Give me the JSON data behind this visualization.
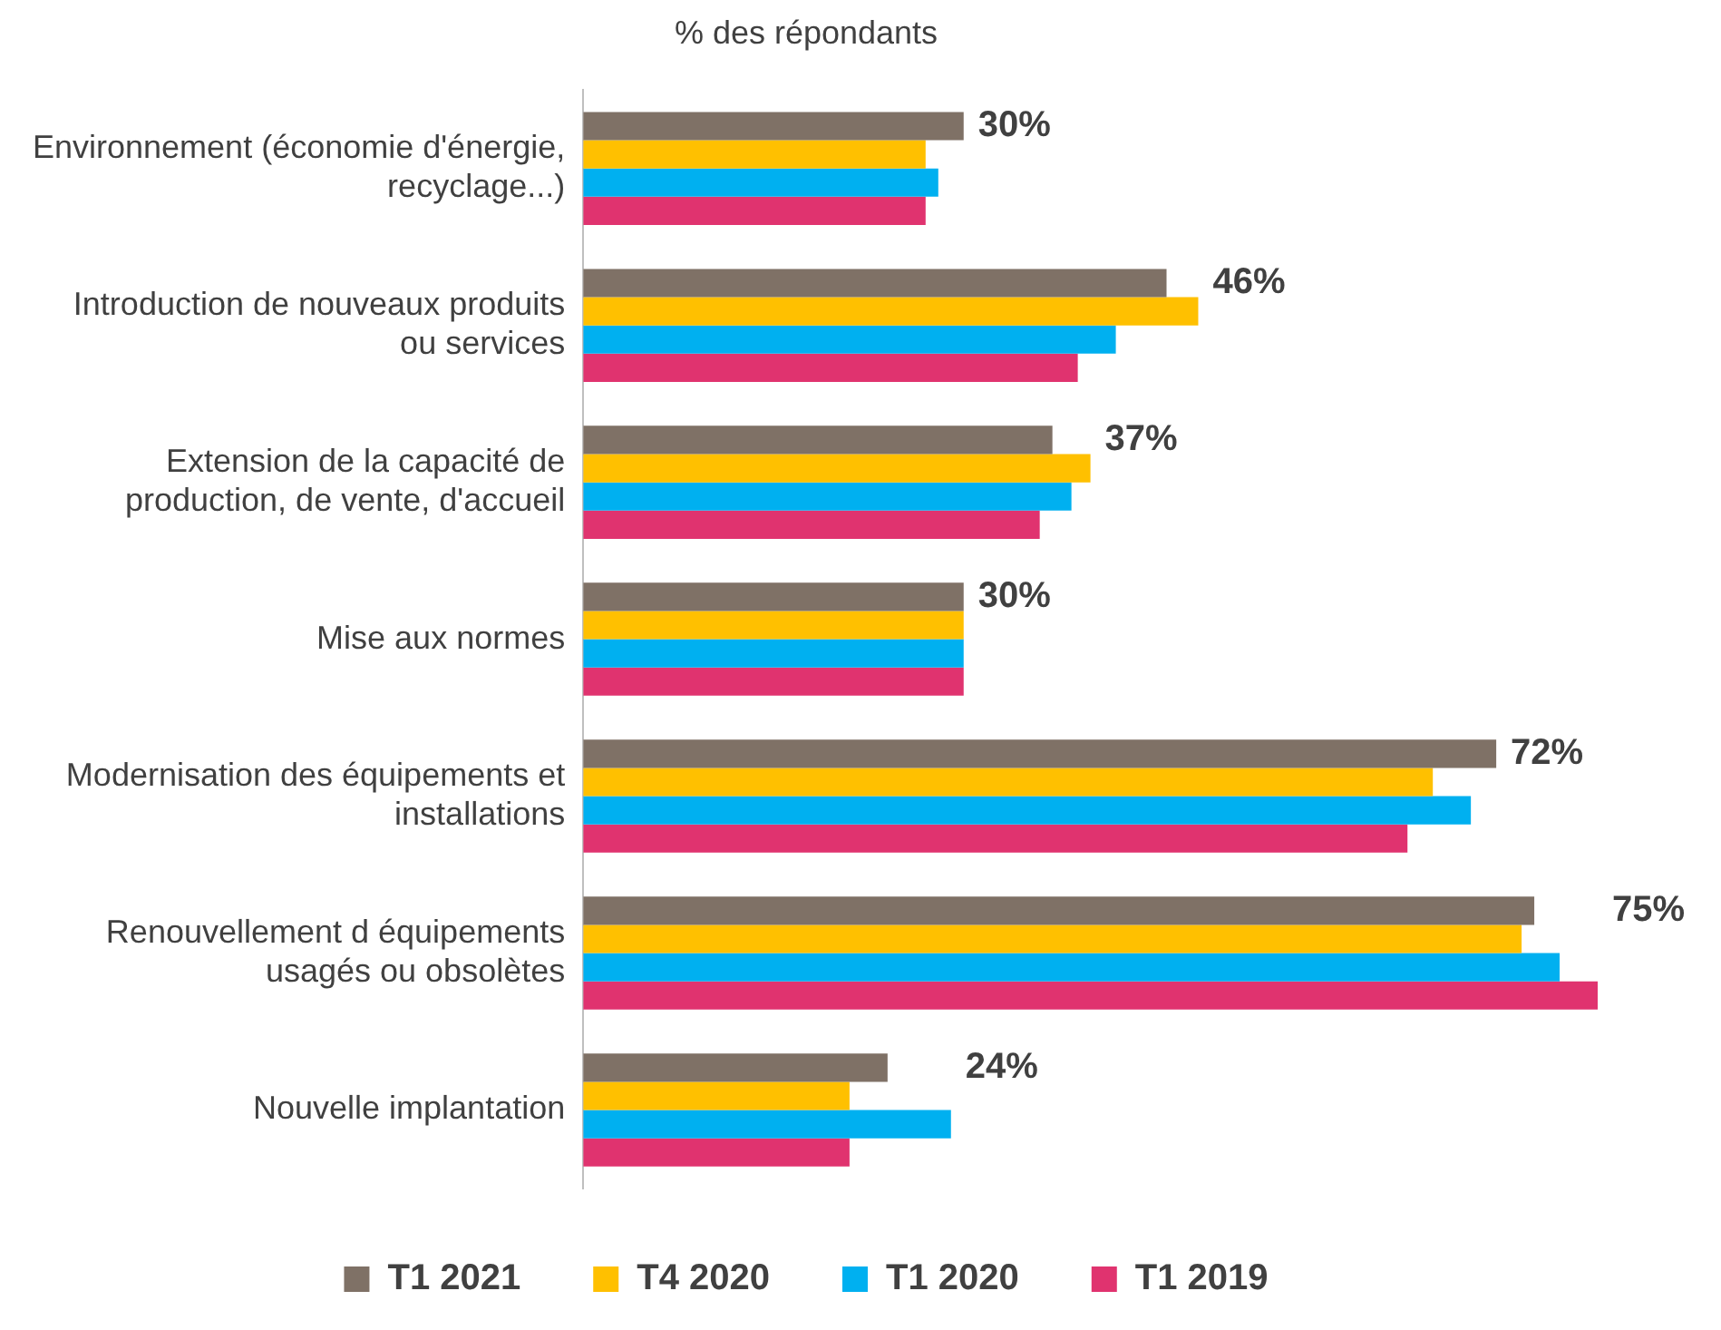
{
  "chart_data": {
    "type": "bar",
    "orientation": "horizontal",
    "title": "% des répondants",
    "categories": [
      "Environnement (économie d'énergie, recyclage...)",
      "Introduction de nouveaux produits ou services",
      "Extension de la capacité de production, de vente, d'accueil",
      "Mise aux normes",
      "Modernisation des équipements et installations",
      "Renouvellement d équipements usagés ou obsolètes",
      "Nouvelle implantation"
    ],
    "series": [
      {
        "name": "T1 2021",
        "color": "#7f7166",
        "values": [
          30,
          46,
          37,
          30,
          72,
          75,
          24
        ],
        "value_labels": [
          "30%",
          "46%",
          "37%",
          "30%",
          "72%",
          "75%",
          "24%"
        ]
      },
      {
        "name": "T4 2020",
        "color": "#ffc000",
        "values": [
          27,
          48.5,
          40,
          30,
          67,
          74,
          21
        ]
      },
      {
        "name": "T1 2020",
        "color": "#00b0f0",
        "values": [
          28,
          42,
          38.5,
          30,
          70,
          77,
          29
        ]
      },
      {
        "name": "T1 2019",
        "color": "#e0336f",
        "values": [
          27,
          39,
          36,
          30,
          65,
          80,
          21
        ]
      }
    ],
    "tick_labels": "y",
    "legend": "bottom"
  }
}
